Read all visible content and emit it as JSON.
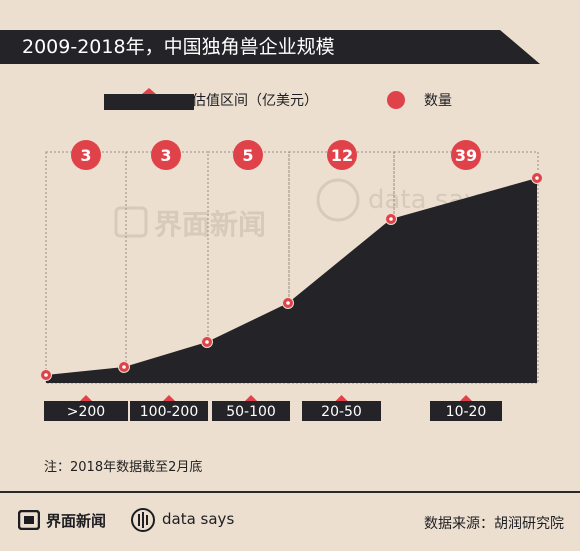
{
  "title": "2009-2018年，中国独角兽企业规模",
  "legend": {
    "valuation": "估值区间（亿美元）",
    "count": "数量"
  },
  "colors": {
    "area": "#232328",
    "marker": "#e0424a",
    "background": "#ecdfd0",
    "gridline": "#9a8f86"
  },
  "chart_data": {
    "type": "area",
    "categories": [
      ">200",
      "100-200",
      "50-100",
      "20-50",
      "10-20"
    ],
    "counts": [
      3,
      3,
      5,
      12,
      39
    ],
    "series": [
      {
        "name": "数量",
        "values": [
          3,
          3,
          5,
          12,
          39
        ]
      }
    ],
    "legend_position": "top",
    "grid": false
  },
  "note": "注：2018年数据截至2月底",
  "watermark": {
    "brand": "界面新闻",
    "tagline": "data says"
  },
  "footer": {
    "brand": "界面新闻",
    "tagline": "data says",
    "source": "数据来源：胡润研究院"
  }
}
